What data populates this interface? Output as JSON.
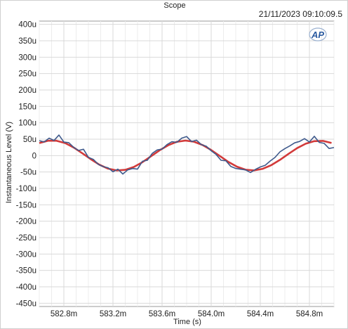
{
  "window": {
    "title": "Scope",
    "timestamp": "21/11/2023 09:10:09.5"
  },
  "logo": {
    "text": "AP",
    "color": "#2a5aa0"
  },
  "chart_data": {
    "type": "line",
    "title": "",
    "xlabel": "Time (s)",
    "ylabel": "Instantaneous Level (V)",
    "xlim": [
      0.5826,
      0.585
    ],
    "ylim": [
      -0.00046,
      0.00041
    ],
    "x_ticks": [
      {
        "value": 0.5828,
        "label": "582.8m"
      },
      {
        "value": 0.5832,
        "label": "583.2m"
      },
      {
        "value": 0.5836,
        "label": "583.6m"
      },
      {
        "value": 0.584,
        "label": "584.0m"
      },
      {
        "value": 0.5844,
        "label": "584.4m"
      },
      {
        "value": 0.5848,
        "label": "584.8m"
      }
    ],
    "y_ticks": [
      {
        "value": 0.0004,
        "label": "400u"
      },
      {
        "value": 0.00035,
        "label": "350u"
      },
      {
        "value": 0.0003,
        "label": "300u"
      },
      {
        "value": 0.00025,
        "label": "250u"
      },
      {
        "value": 0.0002,
        "label": "200u"
      },
      {
        "value": 0.00015,
        "label": "150u"
      },
      {
        "value": 0.0001,
        "label": "100u"
      },
      {
        "value": 5e-05,
        "label": "50u"
      },
      {
        "value": 0,
        "label": "0"
      },
      {
        "value": -5e-05,
        "label": "-50u"
      },
      {
        "value": -0.0001,
        "label": "-100u"
      },
      {
        "value": -0.00015,
        "label": "-150u"
      },
      {
        "value": -0.0002,
        "label": "-200u"
      },
      {
        "value": -0.00025,
        "label": "-250u"
      },
      {
        "value": -0.0003,
        "label": "-300u"
      },
      {
        "value": -0.00035,
        "label": "-350u"
      },
      {
        "value": -0.0004,
        "label": "-400u"
      },
      {
        "value": -0.00045,
        "label": "-450u"
      }
    ],
    "grid": true,
    "legend": "none",
    "series": [
      {
        "color": "#d23a3a",
        "x": [
          0.5826,
          0.58267,
          0.58274,
          0.58281,
          0.58288,
          0.58295,
          0.58302,
          0.58309,
          0.58316,
          0.58323,
          0.5833,
          0.58337,
          0.58344,
          0.58351,
          0.58358,
          0.58365,
          0.58372,
          0.58379,
          0.58386,
          0.58393,
          0.584,
          0.58407,
          0.58414,
          0.58421,
          0.58428,
          0.58435,
          0.58442,
          0.58449,
          0.58456,
          0.58463,
          0.5847,
          0.58477,
          0.58484,
          0.58491,
          0.58498
        ],
        "y": [
          3.82e-05,
          4.53e-05,
          4.53e-05,
          3.82e-05,
          2.48e-05,
          7.4e-06,
          -1.11e-05,
          -2.78e-05,
          -3.97e-05,
          -4.52e-05,
          -4.34e-05,
          -3.46e-05,
          -2.01e-05,
          -2.1e-06,
          1.62e-05,
          3.16e-05,
          4.2e-05,
          4.57e-05,
          4.23e-05,
          3.22e-05,
          1.71e-05,
          -1.1e-06,
          -1.92e-05,
          -3.38e-05,
          -4.29e-05,
          -4.52e-05,
          -4.03e-05,
          -2.9e-05,
          -1.29e-05,
          5.4e-06,
          2.27e-05,
          3.62e-05,
          4.4e-05,
          4.48e-05,
          3.85e-05
        ]
      },
      {
        "color": "#3f5a8c",
        "x": [
          0.5826,
          0.58264,
          0.58268,
          0.58272,
          0.58276,
          0.5828,
          0.58284,
          0.58288,
          0.58292,
          0.58296,
          0.583,
          0.58304,
          0.58308,
          0.58312,
          0.58316,
          0.5832,
          0.58324,
          0.58328,
          0.58332,
          0.58336,
          0.5834,
          0.58344,
          0.58348,
          0.58352,
          0.58356,
          0.5836,
          0.58364,
          0.58368,
          0.58372,
          0.58376,
          0.5838,
          0.58384,
          0.58388,
          0.58392,
          0.58396,
          0.584,
          0.58404,
          0.58408,
          0.58412,
          0.58416,
          0.5842,
          0.58424,
          0.58428,
          0.58432,
          0.58436,
          0.5844,
          0.58444,
          0.58448,
          0.58452,
          0.58456,
          0.5846,
          0.58464,
          0.58468,
          0.58472,
          0.58476,
          0.5848,
          0.58484,
          0.58488,
          0.58492,
          0.58496,
          0.585
        ],
        "y": [
          4.54e-05,
          4.16e-05,
          5.32e-05,
          4.61e-05,
          6.27e-05,
          4.12e-05,
          3.96e-05,
          2.52e-05,
          1.57e-05,
          1.94e-05,
          -5.2e-06,
          -1.15e-05,
          -2.64e-05,
          -3.35e-05,
          -3.71e-05,
          -4.93e-05,
          -4.13e-05,
          -5.63e-05,
          -4.37e-05,
          -3.94e-05,
          -4.12e-05,
          -1.72e-05,
          -1.43e-05,
          6.7e-06,
          1.72e-05,
          1.98e-05,
          3.36e-05,
          4.23e-05,
          4.04e-05,
          5.32e-05,
          5.81e-05,
          4.27e-05,
          4.71e-05,
          3.35e-05,
          2.86e-05,
          1.47e-05,
          3.6e-06,
          -1.42e-05,
          -1.58e-05,
          -3.31e-05,
          -3.92e-05,
          -4.15e-05,
          -4.37e-05,
          -5.16e-05,
          -4.21e-05,
          -3.47e-05,
          -2.96e-05,
          -1.67e-05,
          -5.4e-06,
          1.14e-05,
          2.12e-05,
          2.94e-05,
          3.88e-05,
          4.32e-05,
          5.17e-05,
          4.14e-05,
          5.87e-05,
          4.02e-05,
          3.74e-05,
          2.18e-05,
          2.46e-05
        ]
      }
    ]
  }
}
